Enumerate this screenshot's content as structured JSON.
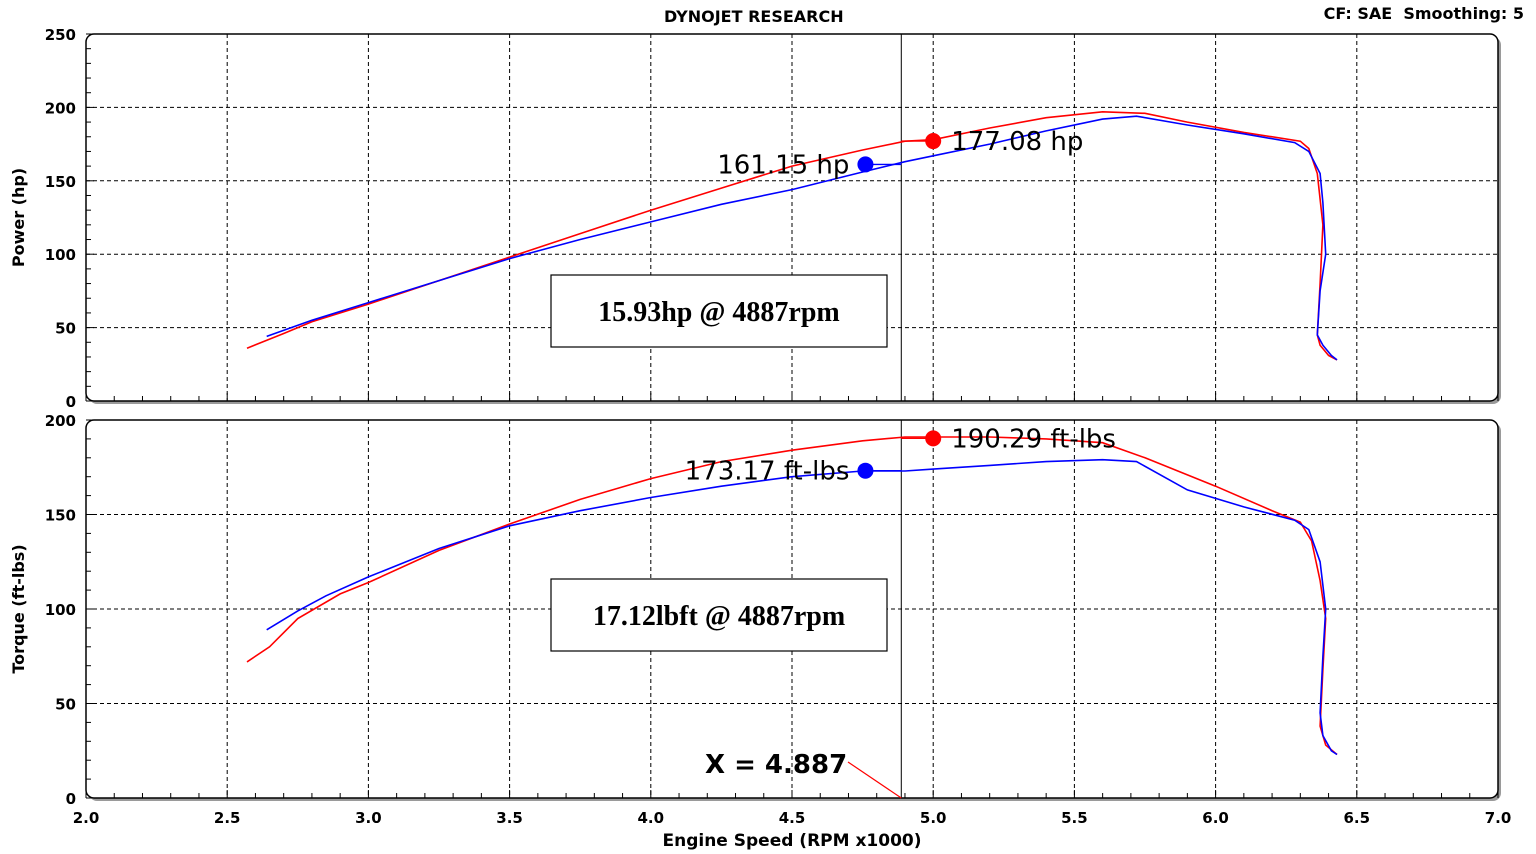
{
  "header": {
    "title": "DYNOJET RESEARCH",
    "info": "CF: SAE  Smoothing: 5"
  },
  "chart_data": [
    {
      "type": "line",
      "ylabel": "Power (hp)",
      "xlabel": "",
      "xlim": [
        2.0,
        7.0
      ],
      "ylim": [
        0,
        250
      ],
      "yticks": [
        0,
        50,
        100,
        150,
        200,
        250
      ],
      "grid": true,
      "series": [
        {
          "color": "#ff0000",
          "x": [
            2.57,
            2.7,
            2.8,
            3.0,
            3.25,
            3.5,
            3.75,
            4.0,
            4.25,
            4.5,
            4.75,
            4.9,
            5.0,
            5.2,
            5.4,
            5.6,
            5.75,
            5.9,
            6.1,
            6.3,
            6.33,
            6.36,
            6.38,
            6.37,
            6.36,
            6.37,
            6.4,
            6.43
          ],
          "y": [
            36,
            46,
            54,
            66,
            82,
            98,
            114,
            130,
            145,
            160,
            171,
            177,
            178,
            186,
            193,
            197,
            196,
            190,
            183,
            177,
            172,
            155,
            120,
            80,
            45,
            38,
            31,
            28
          ]
        },
        {
          "color": "#0000ff",
          "x": [
            2.64,
            2.8,
            3.0,
            3.25,
            3.5,
            3.75,
            4.0,
            4.25,
            4.5,
            4.75,
            4.9,
            5.0,
            5.2,
            5.4,
            5.6,
            5.72,
            5.9,
            6.1,
            6.28,
            6.33,
            6.37,
            6.38,
            6.39,
            6.37,
            6.36,
            6.38,
            6.41,
            6.43
          ],
          "y": [
            44,
            55,
            67,
            82,
            97,
            110,
            122,
            134,
            144,
            156,
            163,
            167,
            175,
            184,
            192,
            194,
            188,
            182,
            176,
            170,
            155,
            135,
            100,
            75,
            45,
            38,
            31,
            28
          ]
        }
      ],
      "markers": [
        {
          "x": 4.76,
          "y": 161.15,
          "color": "#0000ff",
          "label": "161.15 hp"
        },
        {
          "x": 5.0,
          "y": 177.08,
          "color": "#ff0000",
          "label": "177.08 hp"
        }
      ],
      "annotation": "15.93hp @ 4887rpm"
    },
    {
      "type": "line",
      "ylabel": "Torque (ft-lbs)",
      "xlabel": "Engine Speed (RPM x1000)",
      "xlim": [
        2.0,
        7.0
      ],
      "ylim": [
        0,
        200
      ],
      "yticks": [
        0,
        50,
        100,
        150,
        200
      ],
      "xticks": [
        "2.0",
        "2.5",
        "3.0",
        "3.5",
        "4.0",
        "4.5",
        "5.0",
        "5.5",
        "6.0",
        "6.5",
        "7.0"
      ],
      "grid": true,
      "series": [
        {
          "color": "#ff0000",
          "x": [
            2.57,
            2.65,
            2.75,
            2.9,
            3.0,
            3.25,
            3.5,
            3.75,
            4.0,
            4.25,
            4.5,
            4.75,
            4.9,
            5.0,
            5.2,
            5.4,
            5.6,
            5.75,
            6.0,
            6.2,
            6.3,
            6.34,
            6.37,
            6.39,
            6.38,
            6.37,
            6.39,
            6.43
          ],
          "y": [
            72,
            80,
            95,
            108,
            114,
            131,
            145,
            158,
            169,
            178,
            184,
            189,
            191,
            191,
            191,
            190,
            188,
            180,
            165,
            152,
            146,
            136,
            115,
            95,
            68,
            38,
            28,
            23
          ]
        },
        {
          "color": "#0000ff",
          "x": [
            2.64,
            2.75,
            2.85,
            3.0,
            3.25,
            3.5,
            3.75,
            4.0,
            4.25,
            4.5,
            4.75,
            4.9,
            5.0,
            5.2,
            5.4,
            5.6,
            5.72,
            5.9,
            6.1,
            6.28,
            6.33,
            6.37,
            6.39,
            6.38,
            6.37,
            6.38,
            6.41,
            6.43
          ],
          "y": [
            89,
            99,
            107,
            117,
            132,
            144,
            152,
            159,
            165,
            170,
            173,
            173,
            174,
            176,
            178,
            179,
            178,
            163,
            154,
            147,
            142,
            125,
            100,
            75,
            45,
            33,
            25,
            23
          ]
        }
      ],
      "markers": [
        {
          "x": 4.76,
          "y": 173.17,
          "color": "#0000ff",
          "label": "173.17 ft-lbs"
        },
        {
          "x": 5.0,
          "y": 190.29,
          "color": "#ff0000",
          "label": "190.29 ft-lbs"
        }
      ],
      "annotation": "17.12lbft @ 4887rpm",
      "cursor_label": "X = 4.887",
      "cursor_x": 4.887
    }
  ]
}
